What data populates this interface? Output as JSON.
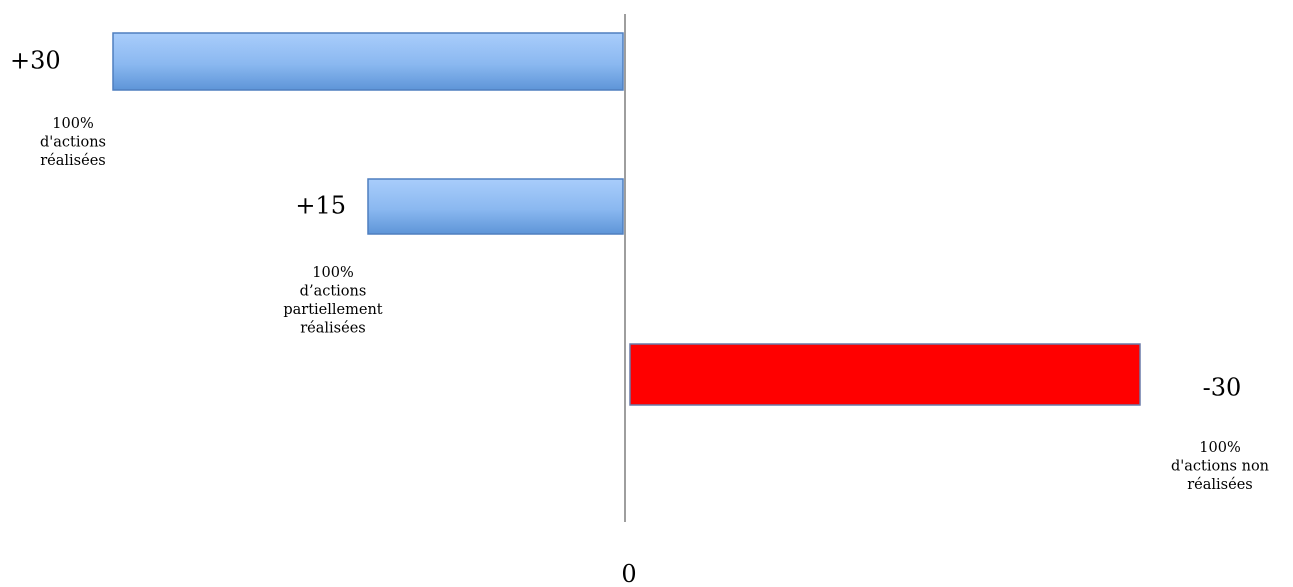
{
  "chart_data": {
    "type": "bar",
    "orientation": "horizontal",
    "baseline_label": "0",
    "bars": [
      {
        "value": 30,
        "value_label": "+30",
        "category_lines": [
          "100%",
          "d'actions",
          "réalisées"
        ],
        "color": "#8ab8f0"
      },
      {
        "value": 15,
        "value_label": "+15",
        "category_lines": [
          "100%",
          "d’actions",
          "partiellement",
          "réalisées"
        ],
        "color": "#8ab8f0"
      },
      {
        "value": -30,
        "value_label": "-30",
        "category_lines": [
          "100%",
          "d'actions non",
          "réalisées"
        ],
        "color": "#ff0000"
      }
    ],
    "positive_direction": "left",
    "xlim": [
      -30,
      30
    ],
    "grid": false,
    "legend": "none"
  }
}
